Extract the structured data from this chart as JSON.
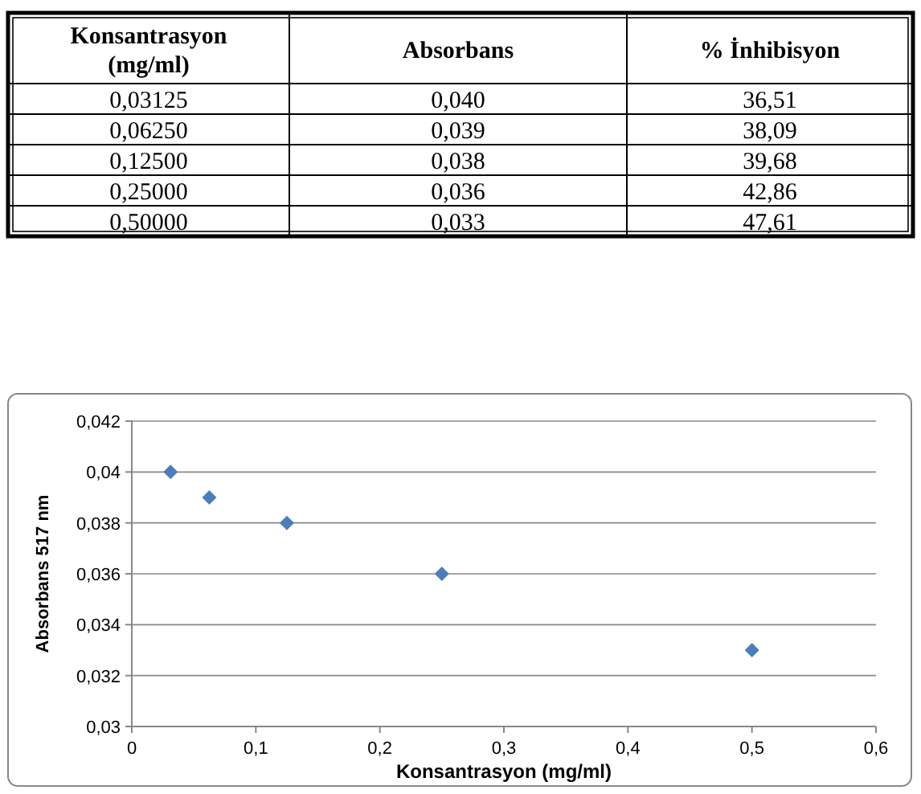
{
  "chart_data": [
    {
      "type": "other",
      "xlabel": "Konsantrasyon (mg/ml)",
      "categories": [
        "0,03125",
        "0,06250",
        "0,12500",
        "0,25000",
        "0,50000"
      ],
      "series": [
        {
          "name": "Absorbans",
          "values": [
            0.04,
            0.039,
            0.038,
            0.036,
            0.033
          ],
          "value_labels": [
            "0,040",
            "0,039",
            "0,038",
            "0,036",
            "0,033"
          ]
        },
        {
          "name": "% İnhibisyon",
          "values": [
            36.51,
            38.09,
            39.68,
            42.86,
            47.61
          ],
          "value_labels": [
            "36,51",
            "38,09",
            "39,68",
            "42,86",
            "47,61"
          ]
        }
      ]
    },
    {
      "type": "scatter",
      "xlabel": "Konsantrasyon (mg/ml)",
      "ylabel": "Absorbans 517 nm",
      "x": [
        0.03125,
        0.0625,
        0.125,
        0.25,
        0.5
      ],
      "series": [
        {
          "color": "#4a7ebb",
          "values": [
            0.04,
            0.039,
            0.038,
            0.036,
            0.033
          ]
        }
      ],
      "xlim": [
        0,
        0.6
      ],
      "xticks": [
        0,
        {
          "value": 0.1,
          "label": "0,1"
        },
        {
          "value": 0.2,
          "label": "0,2"
        },
        {
          "value": 0.3,
          "label": "0,3"
        },
        {
          "value": 0.4,
          "label": "0,4"
        },
        {
          "value": 0.5,
          "label": "0,5"
        },
        {
          "value": 0.6,
          "label": "0,6"
        }
      ],
      "ylim": [
        0.03,
        0.042
      ],
      "yticks": [
        {
          "value": 0.03,
          "label": "0,03"
        },
        {
          "value": 0.032,
          "label": "0,032"
        },
        {
          "value": 0.034,
          "label": "0,034"
        },
        {
          "value": 0.036,
          "label": "0,036"
        },
        {
          "value": 0.038,
          "label": "0,038"
        },
        {
          "value": 0.04,
          "label": "0,04"
        },
        {
          "value": 0.042,
          "label": "0,042"
        }
      ],
      "grid": "y",
      "marker": "diamond"
    }
  ]
}
